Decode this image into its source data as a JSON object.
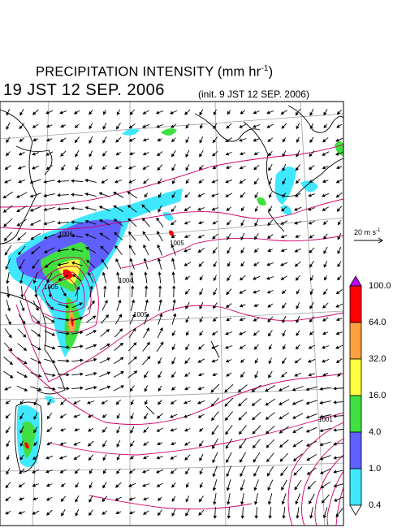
{
  "title": {
    "main": "PRECIPITATION INTENSITY (mm hr",
    "exponent": "-1",
    "close": ")"
  },
  "valid_time": "19 JST 12 SEP. 2006",
  "init_time": "(init. 9 JST 12 SEP. 2006)",
  "wind_reference": {
    "label": "20 m s",
    "exponent": "-1"
  },
  "colorbar": {
    "labels": [
      "100.0",
      "64.0",
      "32.0",
      "16.0",
      "4.0",
      "1.0",
      "0.4"
    ],
    "colors": [
      "#ff0000",
      "#ffa040",
      "#ffff40",
      "#40e040",
      "#6060ff",
      "#40e8ff"
    ],
    "over_color": "#c000ff",
    "under_color": "#ffffff"
  },
  "pressure_labels": [
    "1006",
    "1005",
    "1004",
    "1005",
    "1005",
    "1001"
  ],
  "colors": {
    "isobar": "#d0006a",
    "coast": "#000000",
    "grid": "#999999"
  }
}
